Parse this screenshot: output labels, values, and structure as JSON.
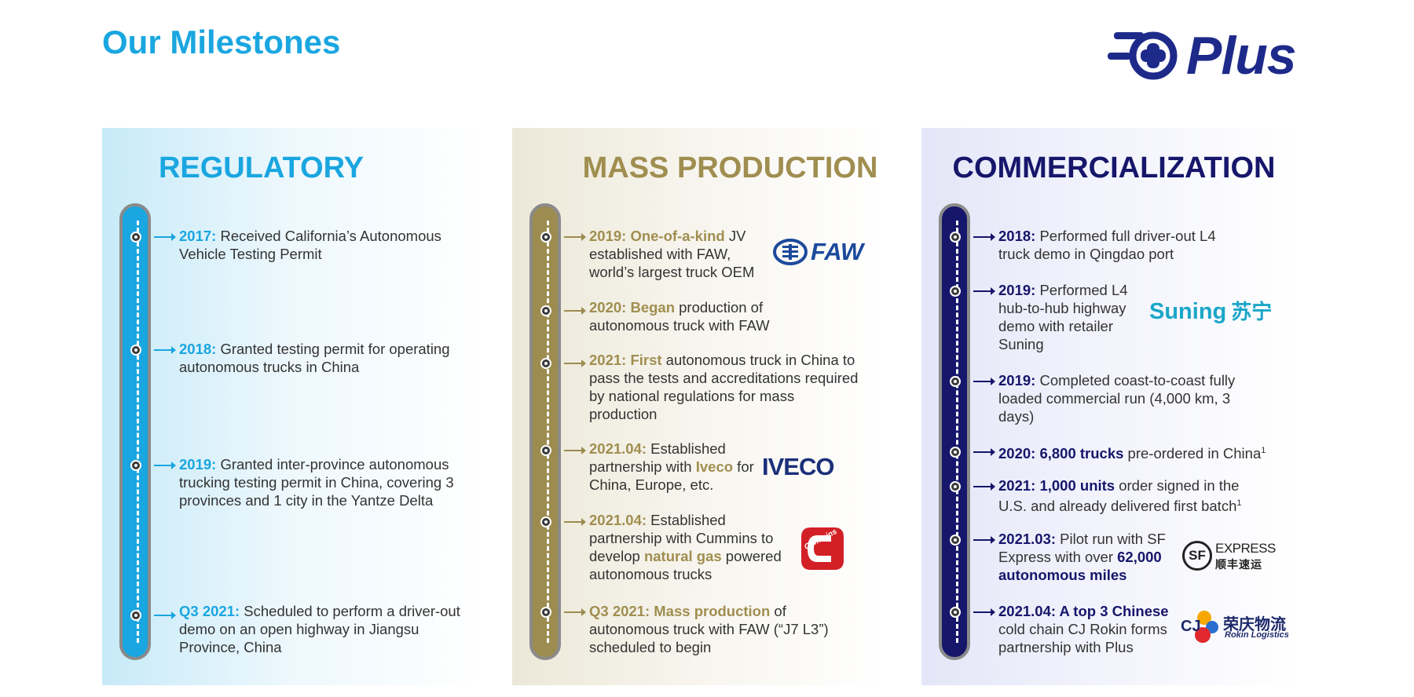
{
  "header": {
    "title": "Our Milestones",
    "logo_text": "Plus"
  },
  "colors": {
    "regulatory": "#1aa6e0",
    "mass_production": "#a08e50",
    "commercialization": "#16166b"
  },
  "regulatory": {
    "title": "REGULATORY",
    "items": [
      {
        "date": "2017:",
        "text": " Received California’s Autonomous Vehicle Testing Permit"
      },
      {
        "date": "2018:",
        "text": " Granted testing permit for operating autonomous trucks in China"
      },
      {
        "date": "2019:",
        "text": " Granted inter-province autonomous trucking testing permit in China, covering 3 provinces and 1 city in the Yantze Delta"
      },
      {
        "date": "Q3 2021:",
        "text": " Scheduled to perform a driver-out demo on an open highway in Jiangsu Province, China"
      }
    ]
  },
  "mass_production": {
    "title": "MASS PRODUCTION",
    "items": [
      {
        "hl1": "2019: One-of-a-kind",
        "t1": " JV established with FAW, world’s largest truck OEM"
      },
      {
        "hl1": "2020: Began",
        "t1": " production of autonomous truck with FAW"
      },
      {
        "hl1": "2021: First",
        "t1": " autonomous truck in China to pass the tests and accreditations required by national regulations for mass production"
      },
      {
        "hl1": "2021.04:",
        "t1": " Established partnership with ",
        "hl2": "Iveco",
        "t2": " for China, Europe, etc."
      },
      {
        "hl1": "2021.04:",
        "t1": " Established partnership with Cummins to develop ",
        "hl2": "natural gas",
        "t2": " powered autonomous trucks"
      },
      {
        "hl1": "Q3 2021: Mass production",
        "t1": " of autonomous truck with FAW (“J7 L3”) scheduled to begin"
      }
    ],
    "brands": {
      "faw": "FAW",
      "iveco": "IVECO",
      "cummins": "Cummins"
    }
  },
  "commercialization": {
    "title": "COMMERCIALIZATION",
    "items": [
      {
        "hl1": "2018:",
        "t1": " Performed full driver-out L4 truck demo in Qingdao port"
      },
      {
        "hl1": "2019:",
        "t1": " Performed L4 hub-to-hub highway demo with retailer Suning"
      },
      {
        "hl1": "2019:",
        "t1": " Completed coast-to-coast fully loaded commercial run (4,000 km, 3 days)"
      },
      {
        "hl1": "2020: 6,800 trucks",
        "t1": " pre-ordered in China",
        "sup": "1"
      },
      {
        "hl1": "2021: 1,000 units",
        "t1": " order signed in the U.S. and already delivered first batch",
        "sup": "1"
      },
      {
        "hl1": "2021.03:",
        "t1": " Pilot run with SF Express with over ",
        "hl2": "62,000 autonomous miles"
      },
      {
        "hl1": "2021.04: A top 3 Chinese",
        "t1": " cold chain CJ Rokin forms partnership with Plus"
      }
    ],
    "brands": {
      "suning_en": "Suning",
      "suning_cn": "苏宁",
      "sf_mark": "SF",
      "sf_en": "EXPRESS",
      "sf_cn": "顺丰速运",
      "cj_mark": "CJ",
      "cj_cn": "荣庆物流",
      "cj_en": "Rokin Logistics"
    }
  }
}
